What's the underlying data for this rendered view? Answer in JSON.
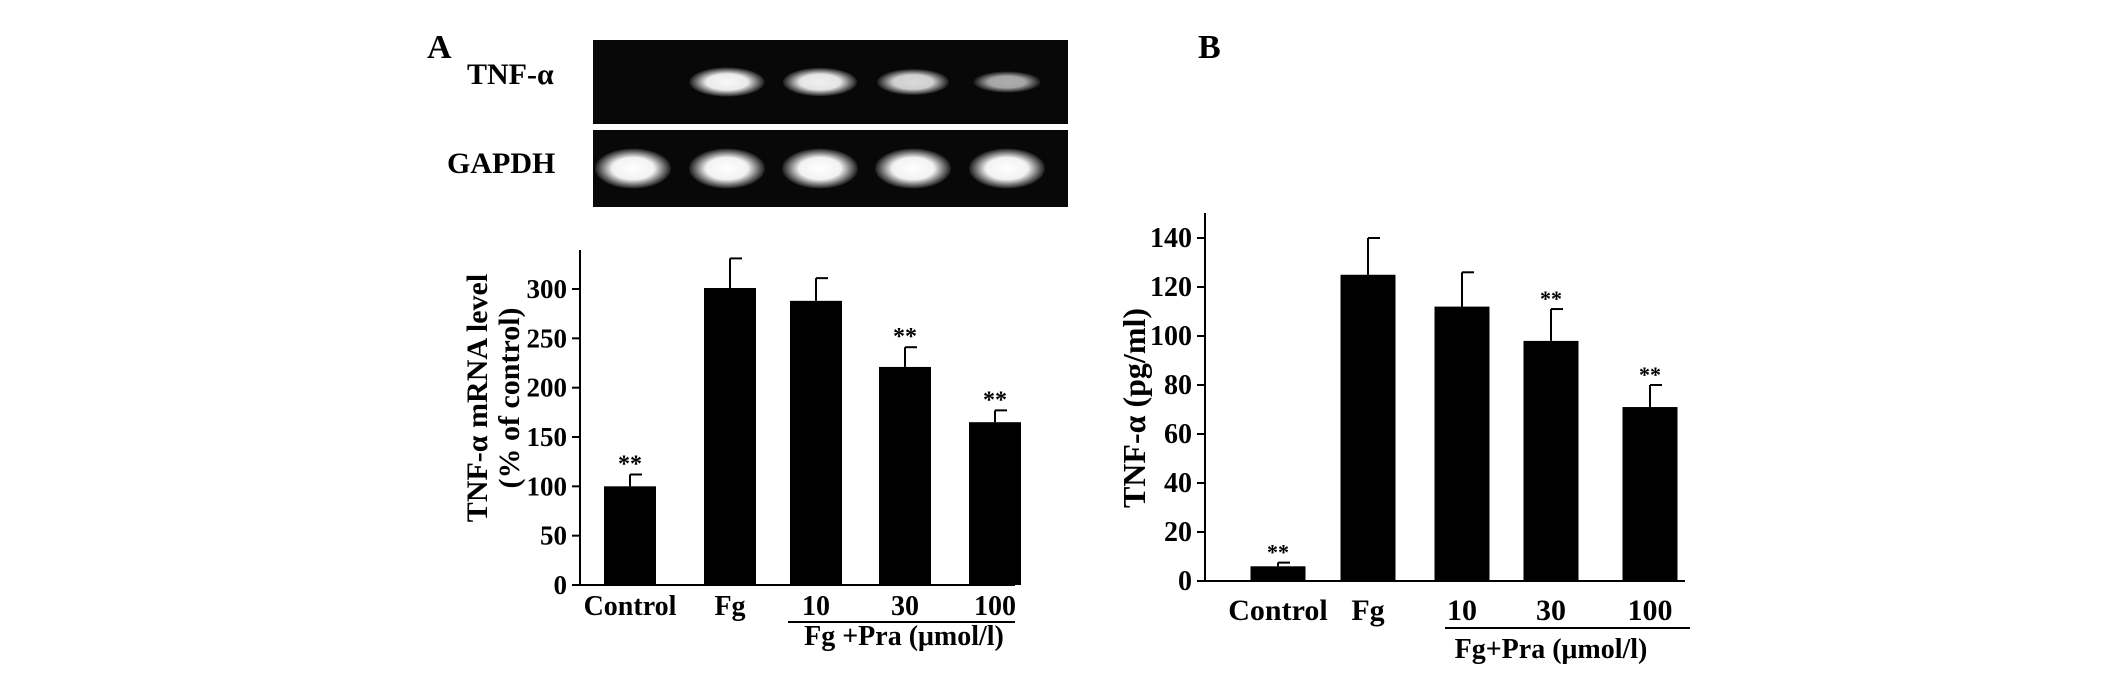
{
  "panels": {
    "a": {
      "letter": "A"
    },
    "b": {
      "letter": "B"
    }
  },
  "gel": {
    "rows": [
      {
        "label": "TNF-α",
        "intensities": [
          0,
          0.95,
          0.9,
          0.75,
          0.45
        ]
      },
      {
        "label": "GAPDH",
        "intensities": [
          1,
          1,
          1,
          1,
          1
        ]
      }
    ]
  },
  "chart_data": [
    {
      "type": "bar",
      "panel": "A",
      "categories": [
        "Control",
        "Fg",
        "10",
        "30",
        "100"
      ],
      "values": [
        100,
        301,
        288,
        221,
        165
      ],
      "errors": [
        12,
        30,
        23,
        20,
        12
      ],
      "significance": [
        "**",
        "",
        "",
        "**",
        "**"
      ],
      "ylabel": "TNF-α mRNA level",
      "ylabel2": "(% of control)",
      "ylim": [
        0,
        300
      ],
      "yticks": [
        0,
        50,
        100,
        150,
        200,
        250,
        300
      ],
      "group_label": "Fg +Pra  (μmol/l)"
    },
    {
      "type": "bar",
      "panel": "B",
      "categories": [
        "Control",
        "Fg",
        "10",
        "30",
        "100"
      ],
      "values": [
        6,
        125,
        112,
        98,
        71
      ],
      "errors": [
        1.5,
        15,
        14,
        13,
        9
      ],
      "significance": [
        "**",
        "",
        "",
        "**",
        "**"
      ],
      "ylabel": "TNF-α  (pg/ml)",
      "ylim": [
        0,
        140
      ],
      "yticks": [
        0,
        20,
        40,
        60,
        80,
        100,
        120,
        140
      ],
      "group_label": "Fg+Pra (μmol/l)"
    }
  ]
}
